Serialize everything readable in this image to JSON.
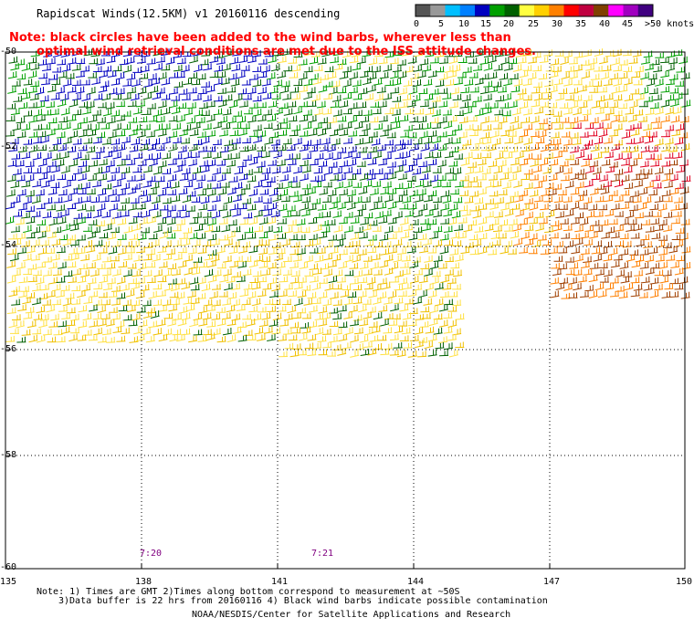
{
  "title": "Rapidscat Winds(12.5KM) v1 20160116 descending",
  "note_line1": "Note: black circles have been added to the wind barbs, wherever less than",
  "note_line2": "optimal wind retrieval conditions are met due to the ISS attitude changes.",
  "color_scale": {
    "labels": [
      "0",
      "5",
      "10",
      "15",
      "20",
      "25",
      "30",
      "35",
      "40",
      "45",
      ">50 knots"
    ],
    "colors": [
      "#555555",
      "#999999",
      "#00bfff",
      "#0080ff",
      "#0000c0",
      "#00a000",
      "#006000",
      "#ffff40",
      "#ffd000",
      "#ff8000",
      "#ff0000",
      "#c00040",
      "#804000",
      "#ff00ff",
      "#a000c0",
      "#400080"
    ]
  },
  "lat_labels": [
    "-50",
    "-52",
    "-54",
    "-56",
    "-58",
    "-60"
  ],
  "lon_labels": [
    "135",
    "138",
    "141",
    "144",
    "147",
    "150"
  ],
  "time_labels": [
    "7:20",
    "7:21"
  ],
  "footer": {
    "line1": "Note: 1) Times are GMT 2)Times along bottom correspond to measurement at ~50S",
    "line2": "3)Data buffer is 22 hrs from 20160116 4) Black wind barbs indicate possible contamination",
    "line3": "NOAA/NESDIS/Center for Satellite Applications and Research"
  }
}
